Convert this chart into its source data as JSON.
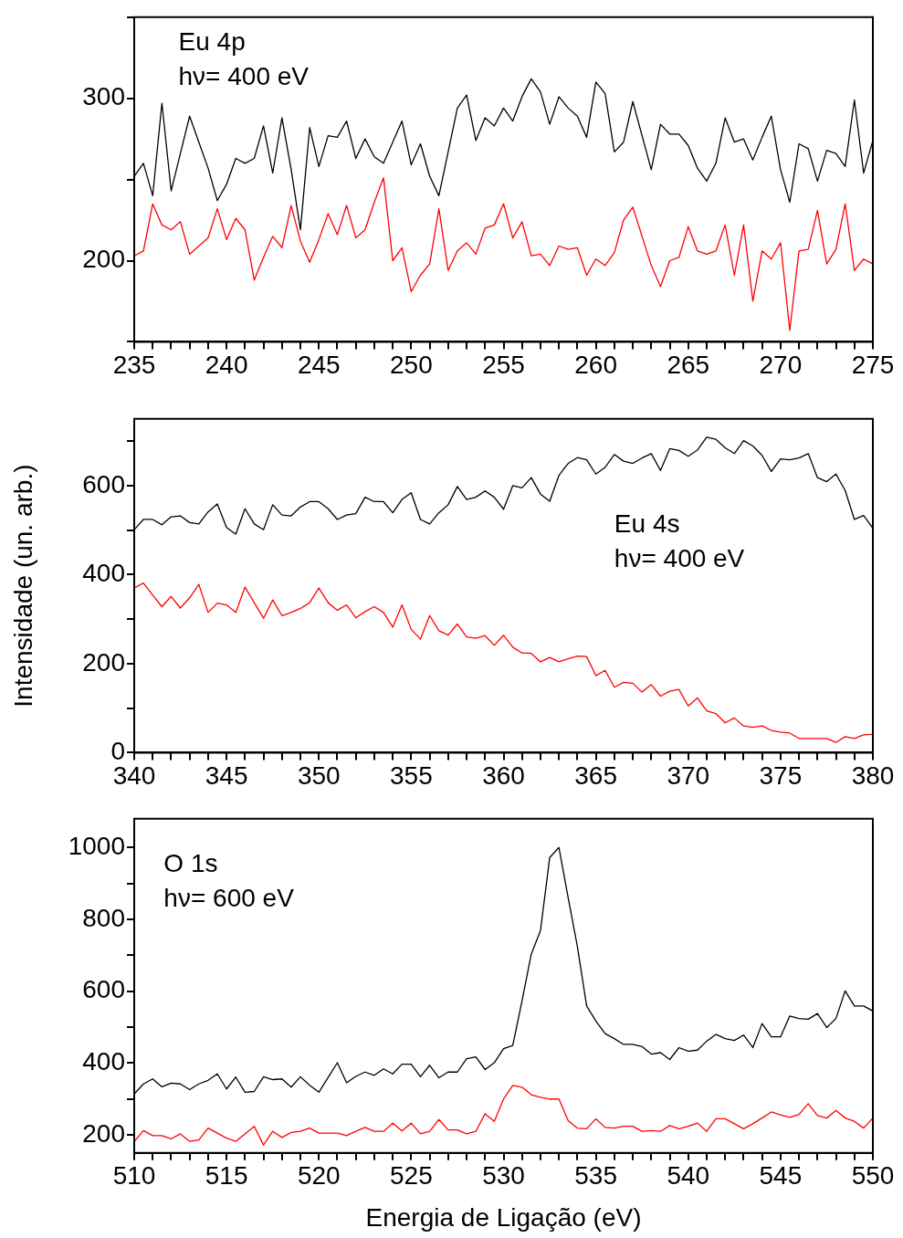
{
  "chart_data": [
    {
      "type": "line",
      "marker": "none",
      "line_style": "solid",
      "annotations": [
        "Eu 4p",
        "hν= 400 eV"
      ],
      "x": [
        235,
        235.5,
        236,
        236.5,
        237,
        237.5,
        238,
        238.5,
        239,
        239.5,
        240,
        240.5,
        241,
        241.5,
        242,
        242.5,
        243,
        243.5,
        244,
        244.5,
        245,
        245.5,
        246,
        246.5,
        247,
        247.5,
        248,
        248.5,
        249,
        249.5,
        250,
        250.5,
        251,
        251.5,
        252,
        252.5,
        253,
        253.5,
        254,
        254.5,
        255,
        255.5,
        256,
        256.5,
        257,
        257.5,
        258,
        258.5,
        259,
        259.5,
        260,
        260.5,
        261,
        261.5,
        262,
        262.5,
        263,
        263.5,
        264,
        264.5,
        265,
        265.5,
        266,
        266.5,
        267,
        267.5,
        268,
        268.5,
        269,
        269.5,
        270,
        270.5,
        271,
        271.5,
        272,
        272.5,
        273,
        273.5,
        274,
        274.5,
        275
      ],
      "xlim": [
        235,
        275
      ],
      "xticks": [
        235,
        {
          "value": 236,
          "label": null
        },
        {
          "value": 237,
          "label": null
        },
        {
          "value": 238,
          "label": null
        },
        {
          "value": 239,
          "label": null
        },
        240,
        {
          "value": 241,
          "label": null
        },
        {
          "value": 242,
          "label": null
        },
        {
          "value": 243,
          "label": null
        },
        {
          "value": 244,
          "label": null
        },
        245,
        {
          "value": 246,
          "label": null
        },
        {
          "value": 247,
          "label": null
        },
        {
          "value": 248,
          "label": null
        },
        {
          "value": 249,
          "label": null
        },
        250,
        {
          "value": 251,
          "label": null
        },
        {
          "value": 252,
          "label": null
        },
        {
          "value": 253,
          "label": null
        },
        {
          "value": 254,
          "label": null
        },
        255,
        {
          "value": 256,
          "label": null
        },
        {
          "value": 257,
          "label": null
        },
        {
          "value": 258,
          "label": null
        },
        {
          "value": 259,
          "label": null
        },
        260,
        {
          "value": 261,
          "label": null
        },
        {
          "value": 262,
          "label": null
        },
        {
          "value": 263,
          "label": null
        },
        {
          "value": 264,
          "label": null
        },
        265,
        {
          "value": 266,
          "label": null
        },
        {
          "value": 267,
          "label": null
        },
        {
          "value": 268,
          "label": null
        },
        {
          "value": 269,
          "label": null
        },
        270,
        {
          "value": 271,
          "label": null
        },
        {
          "value": 272,
          "label": null
        },
        {
          "value": 273,
          "label": null
        },
        {
          "value": 274,
          "label": null
        },
        275
      ],
      "ylim": [
        150,
        350
      ],
      "yticks": [
        {
          "value": 150,
          "label": null
        },
        200,
        {
          "value": 250,
          "label": null
        },
        300,
        {
          "value": 350,
          "label": null
        }
      ],
      "series": [
        {
          "color": "#000000",
          "values": [
            252,
            260,
            240,
            297,
            243,
            266,
            289,
            273,
            257,
            237,
            247,
            263,
            260,
            263,
            283,
            254,
            288,
            256,
            219,
            282,
            258,
            277,
            276,
            286,
            263,
            275,
            264,
            260,
            273,
            286,
            259,
            272,
            252,
            240,
            267,
            294,
            302,
            274,
            288,
            283,
            294,
            286,
            301,
            312,
            304,
            284,
            301,
            294,
            289,
            276,
            310,
            303,
            267,
            273,
            298,
            277,
            256,
            284,
            278,
            278,
            271,
            257,
            249,
            260,
            288,
            273,
            275,
            262,
            276,
            289,
            256,
            236,
            272,
            269,
            249,
            268,
            266,
            258,
            299,
            254,
            274
          ]
        },
        {
          "color": "#ff0000",
          "values": [
            203,
            206,
            235,
            222,
            219,
            224,
            204,
            209,
            214,
            232,
            213,
            226,
            219,
            188,
            202,
            215,
            208,
            234,
            212,
            199,
            213,
            229,
            216,
            234,
            214,
            219,
            236,
            251,
            200,
            208,
            181,
            191,
            198,
            232,
            194,
            206,
            211,
            204,
            220,
            222,
            235,
            214,
            224,
            203,
            204,
            197,
            209,
            207,
            208,
            191,
            201,
            197,
            205,
            225,
            233,
            215,
            197,
            184,
            200,
            202,
            221,
            206,
            204,
            206,
            222,
            191,
            222,
            175,
            206,
            201,
            211,
            157,
            206,
            207,
            231,
            198,
            207,
            235,
            194,
            201,
            198
          ]
        }
      ]
    },
    {
      "type": "line",
      "marker": "none",
      "line_style": "solid",
      "ylabel": "Intensidade (un. arb.)",
      "annotations": [
        "Eu 4s",
        "hν= 400 eV"
      ],
      "x": [
        340,
        340.5,
        341,
        341.5,
        342,
        342.5,
        343,
        343.5,
        344,
        344.5,
        345,
        345.5,
        346,
        346.5,
        347,
        347.5,
        348,
        348.5,
        349,
        349.5,
        350,
        350.5,
        351,
        351.5,
        352,
        352.5,
        353,
        353.5,
        354,
        354.5,
        355,
        355.5,
        356,
        356.5,
        357,
        357.5,
        358,
        358.5,
        359,
        359.5,
        360,
        360.5,
        361,
        361.5,
        362,
        362.5,
        363,
        363.5,
        364,
        364.5,
        365,
        365.5,
        366,
        366.5,
        367,
        367.5,
        368,
        368.5,
        369,
        369.5,
        370,
        370.5,
        371,
        371.5,
        372,
        372.5,
        373,
        373.5,
        374,
        374.5,
        375,
        375.5,
        376,
        376.5,
        377,
        377.5,
        378,
        378.5,
        379,
        379.5,
        380
      ],
      "xlim": [
        340,
        380
      ],
      "xticks": [
        340,
        {
          "value": 341,
          "label": null
        },
        {
          "value": 342,
          "label": null
        },
        {
          "value": 343,
          "label": null
        },
        {
          "value": 344,
          "label": null
        },
        345,
        {
          "value": 346,
          "label": null
        },
        {
          "value": 347,
          "label": null
        },
        {
          "value": 348,
          "label": null
        },
        {
          "value": 349,
          "label": null
        },
        350,
        {
          "value": 351,
          "label": null
        },
        {
          "value": 352,
          "label": null
        },
        {
          "value": 353,
          "label": null
        },
        {
          "value": 354,
          "label": null
        },
        355,
        {
          "value": 356,
          "label": null
        },
        {
          "value": 357,
          "label": null
        },
        {
          "value": 358,
          "label": null
        },
        {
          "value": 359,
          "label": null
        },
        360,
        {
          "value": 361,
          "label": null
        },
        {
          "value": 362,
          "label": null
        },
        {
          "value": 363,
          "label": null
        },
        {
          "value": 364,
          "label": null
        },
        365,
        {
          "value": 366,
          "label": null
        },
        {
          "value": 367,
          "label": null
        },
        {
          "value": 368,
          "label": null
        },
        {
          "value": 369,
          "label": null
        },
        370,
        {
          "value": 371,
          "label": null
        },
        {
          "value": 372,
          "label": null
        },
        {
          "value": 373,
          "label": null
        },
        {
          "value": 374,
          "label": null
        },
        375,
        {
          "value": 376,
          "label": null
        },
        {
          "value": 377,
          "label": null
        },
        {
          "value": 378,
          "label": null
        },
        {
          "value": 379,
          "label": null
        },
        380
      ],
      "ylim": [
        0,
        750
      ],
      "yticks": [
        0,
        {
          "value": 100,
          "label": null
        },
        200,
        {
          "value": 300,
          "label": null
        },
        400,
        {
          "value": 500,
          "label": null
        },
        600,
        {
          "value": 700,
          "label": null
        }
      ],
      "series": [
        {
          "color": "#000000",
          "values": [
            501,
            524,
            524,
            512,
            530,
            532,
            517,
            514,
            541,
            559,
            506,
            491,
            548,
            514,
            501,
            557,
            534,
            532,
            552,
            564,
            564,
            548,
            524,
            534,
            537,
            574,
            564,
            564,
            539,
            569,
            584,
            524,
            514,
            539,
            557,
            598,
            569,
            574,
            588,
            574,
            547,
            600,
            595,
            618,
            581,
            565,
            623,
            650,
            663,
            658,
            626,
            641,
            670,
            655,
            650,
            662,
            672,
            634,
            683,
            679,
            666,
            680,
            709,
            704,
            685,
            672,
            701,
            689,
            668,
            632,
            660,
            658,
            662,
            672,
            618,
            609,
            626,
            589,
            524,
            533,
            504
          ]
        },
        {
          "color": "#ff0000",
          "values": [
            370,
            381,
            354,
            328,
            351,
            325,
            348,
            378,
            315,
            336,
            332,
            315,
            372,
            337,
            302,
            343,
            308,
            315,
            324,
            337,
            370,
            337,
            320,
            332,
            303,
            317,
            328,
            315,
            282,
            332,
            277,
            255,
            308,
            274,
            264,
            289,
            260,
            257,
            263,
            241,
            264,
            237,
            224,
            223,
            204,
            214,
            204,
            211,
            217,
            216,
            173,
            185,
            147,
            158,
            156,
            136,
            153,
            127,
            138,
            142,
            105,
            123,
            94,
            88,
            67,
            78,
            60,
            57,
            60,
            50,
            46,
            44,
            32,
            32,
            32,
            32,
            23,
            36,
            32,
            40,
            41
          ]
        }
      ]
    },
    {
      "type": "line",
      "marker": "none",
      "line_style": "solid",
      "xlabel": "Energia de Ligação (eV)",
      "annotations": [
        "O 1s",
        "hν= 600 eV"
      ],
      "x": [
        510,
        510.5,
        511,
        511.5,
        512,
        512.5,
        513,
        513.5,
        514,
        514.5,
        515,
        515.5,
        516,
        516.5,
        517,
        517.5,
        518,
        518.5,
        519,
        519.5,
        520,
        520.5,
        521,
        521.5,
        522,
        522.5,
        523,
        523.5,
        524,
        524.5,
        525,
        525.5,
        526,
        526.5,
        527,
        527.5,
        528,
        528.5,
        529,
        529.5,
        530,
        530.5,
        531,
        531.5,
        532,
        532.5,
        533,
        533.5,
        534,
        534.5,
        535,
        535.5,
        536,
        536.5,
        537,
        537.5,
        538,
        538.5,
        539,
        539.5,
        540,
        540.5,
        541,
        541.5,
        542,
        542.5,
        543,
        543.5,
        544,
        544.5,
        545,
        545.5,
        546,
        546.5,
        547,
        547.5,
        548,
        548.5,
        549,
        549.5,
        550
      ],
      "xlim": [
        510,
        550
      ],
      "xticks": [
        510,
        {
          "value": 511,
          "label": null
        },
        {
          "value": 512,
          "label": null
        },
        {
          "value": 513,
          "label": null
        },
        {
          "value": 514,
          "label": null
        },
        515,
        {
          "value": 516,
          "label": null
        },
        {
          "value": 517,
          "label": null
        },
        {
          "value": 518,
          "label": null
        },
        {
          "value": 519,
          "label": null
        },
        520,
        {
          "value": 521,
          "label": null
        },
        {
          "value": 522,
          "label": null
        },
        {
          "value": 523,
          "label": null
        },
        {
          "value": 524,
          "label": null
        },
        525,
        {
          "value": 526,
          "label": null
        },
        {
          "value": 527,
          "label": null
        },
        {
          "value": 528,
          "label": null
        },
        {
          "value": 529,
          "label": null
        },
        530,
        {
          "value": 531,
          "label": null
        },
        {
          "value": 532,
          "label": null
        },
        {
          "value": 533,
          "label": null
        },
        {
          "value": 534,
          "label": null
        },
        535,
        {
          "value": 536,
          "label": null
        },
        {
          "value": 537,
          "label": null
        },
        {
          "value": 538,
          "label": null
        },
        {
          "value": 539,
          "label": null
        },
        540,
        {
          "value": 541,
          "label": null
        },
        {
          "value": 542,
          "label": null
        },
        {
          "value": 543,
          "label": null
        },
        {
          "value": 544,
          "label": null
        },
        545,
        {
          "value": 546,
          "label": null
        },
        {
          "value": 547,
          "label": null
        },
        {
          "value": 548,
          "label": null
        },
        {
          "value": 549,
          "label": null
        },
        550
      ],
      "ylim": [
        150,
        1080
      ],
      "yticks": [
        200,
        {
          "value": 300,
          "label": null
        },
        400,
        {
          "value": 500,
          "label": null
        },
        600,
        {
          "value": 700,
          "label": null
        },
        800,
        {
          "value": 900,
          "label": null
        },
        1000
      ],
      "series": [
        {
          "color": "#000000",
          "values": [
            314,
            342,
            356,
            334,
            344,
            342,
            326,
            342,
            352,
            370,
            328,
            361,
            319,
            321,
            362,
            354,
            356,
            333,
            362,
            338,
            319,
            360,
            401,
            345,
            363,
            375,
            366,
            384,
            370,
            397,
            397,
            362,
            394,
            359,
            375,
            375,
            412,
            417,
            382,
            401,
            440,
            449,
            573,
            703,
            769,
            972,
            1000,
            860,
            724,
            559,
            517,
            482,
            468,
            452,
            452,
            446,
            425,
            429,
            410,
            443,
            433,
            436,
            461,
            480,
            468,
            463,
            478,
            443,
            510,
            473,
            473,
            531,
            524,
            522,
            538,
            499,
            524,
            601,
            559,
            559,
            545
          ]
        },
        {
          "color": "#ff0000",
          "values": [
            182,
            212,
            198,
            198,
            189,
            203,
            182,
            186,
            219,
            205,
            191,
            182,
            203,
            224,
            172,
            210,
            193,
            207,
            210,
            219,
            205,
            205,
            205,
            198,
            210,
            221,
            210,
            210,
            233,
            211,
            233,
            203,
            210,
            243,
            214,
            214,
            203,
            210,
            259,
            238,
            300,
            338,
            333,
            312,
            305,
            300,
            300,
            240,
            219,
            217,
            245,
            221,
            219,
            224,
            224,
            210,
            212,
            210,
            226,
            217,
            224,
            233,
            210,
            245,
            245,
            231,
            217,
            231,
            247,
            264,
            256,
            249,
            257,
            287,
            254,
            247,
            268,
            247,
            238,
            219,
            247
          ]
        }
      ]
    }
  ]
}
